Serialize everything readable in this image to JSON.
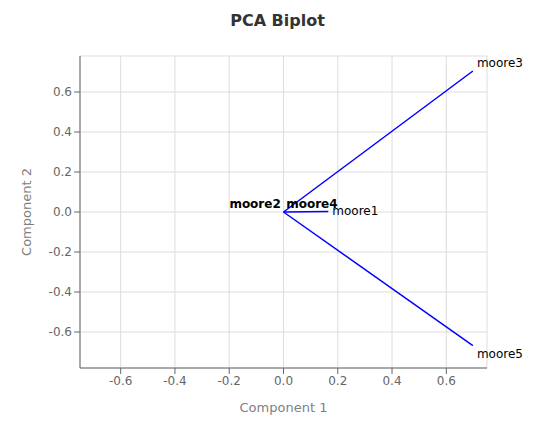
{
  "chart_data": {
    "type": "biplot",
    "title": "PCA Biplot",
    "xlabel": "Component 1",
    "ylabel": "Component 2",
    "xlim": [
      -0.75,
      0.75
    ],
    "ylim": [
      -0.78,
      0.78
    ],
    "xticks": [
      -0.6,
      -0.4,
      -0.2,
      {
        "value": 0,
        "label": "0.0"
      },
      0.2,
      0.4,
      0.6
    ],
    "yticks": [
      -0.6,
      -0.4,
      -0.2,
      {
        "value": 0,
        "label": "0.0"
      },
      0.2,
      0.4,
      0.6
    ],
    "grid": true,
    "color": "#0000FF",
    "series": [
      {
        "name": "moore3",
        "x": [
          0,
          0.698
        ],
        "values": [
          0,
          0.705
        ]
      },
      {
        "name": "moore5",
        "x": [
          0,
          0.698
        ],
        "values": [
          0,
          -0.668
        ]
      },
      {
        "name": "moore1",
        "x": [
          0,
          0.165
        ],
        "values": [
          0,
          0.003
        ]
      }
    ],
    "annotations": [
      {
        "text": "moore2",
        "x": -0.01,
        "y": 0.01
      },
      {
        "text": "moore4",
        "x": 0.01,
        "y": 0.01
      }
    ]
  }
}
